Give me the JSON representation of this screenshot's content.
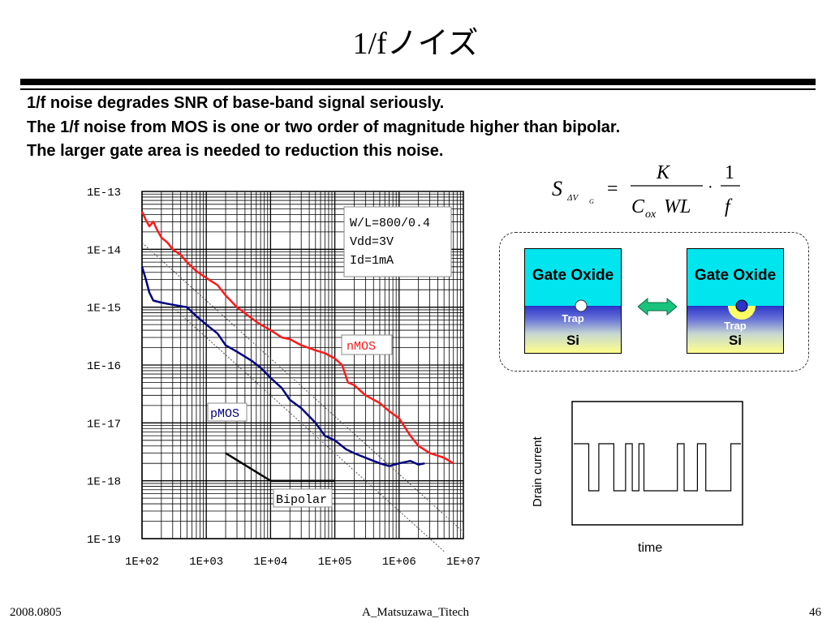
{
  "slide": {
    "title": "1/fノイズ",
    "bullets": [
      "1/f noise degrades SNR of base-band signal seriously.",
      "The  1/f noise from MOS is one or two order of magnitude higher than bipolar.",
      "The larger gate area is needed to reduction this noise."
    ],
    "formula": {
      "lhs_symbol": "S",
      "lhs_subscript": "ΔV",
      "lhs_subsubscript": "G",
      "equals": "=",
      "numerator": "K",
      "denominator": "C",
      "denominator_subscript": "ox",
      "denominator_rest": "WL",
      "dot": "·",
      "numerator2": "1",
      "denominator2": "f"
    },
    "trap_diagram": {
      "left_box": {
        "oxide_label": "Gate Oxide",
        "trap_label": "Trap",
        "si_label": "Si",
        "trap_state": "empty"
      },
      "right_box": {
        "oxide_label": "Gate Oxide",
        "trap_label": "Trap",
        "si_label": "Si",
        "trap_state": "filled"
      },
      "arrow": "double-arrow-icon",
      "colors": {
        "oxide": "#00e5ee",
        "si_top": "#2b33c8",
        "si_bottom": "#ffff8a",
        "trap_filled": "#2b33c8",
        "trap_empty": "#ffffff",
        "arrow": "#19c37d"
      }
    },
    "rts": {
      "ylabel": "Drain current",
      "xlabel": "time",
      "levels": {
        "high": 1,
        "low": 0
      },
      "transitions": [
        0.09,
        0.15,
        0.24,
        0.31,
        0.35,
        0.39,
        0.42,
        0.62,
        0.66,
        0.74,
        0.79,
        0.94
      ],
      "start_state": "high",
      "end_state": "high"
    },
    "footer": {
      "date": "2008.0805",
      "author": "A_Matsuzawa_Titech",
      "page": "46"
    }
  },
  "chart_data": {
    "type": "line",
    "title": "",
    "xlabel": "",
    "ylabel": "",
    "xscale": "log",
    "yscale": "log",
    "xlim": [
      100,
      10000000
    ],
    "ylim": [
      1e-19,
      1e-13
    ],
    "xticks": [
      "1E+02",
      "1E+03",
      "1E+04",
      "1E+05",
      "1E+06",
      "1E+07"
    ],
    "yticks": [
      "1E-13",
      "1E-14",
      "1E-15",
      "1E-16",
      "1E-17",
      "1E-18",
      "1E-19"
    ],
    "grid": true,
    "annotation": [
      "W/L=800/0.4",
      "Vdd=3V",
      "Id=1mA"
    ],
    "labels": {
      "nmos": "nMOS",
      "pmos": "pMOS",
      "bipolar": "Bipolar"
    },
    "series": [
      {
        "name": "nMOS",
        "color": "#ff1a1a",
        "points": [
          [
            100,
            4.5e-14
          ],
          [
            115,
            3.2e-14
          ],
          [
            130,
            2.5e-14
          ],
          [
            150,
            3e-14
          ],
          [
            170,
            2.2e-14
          ],
          [
            200,
            1.6e-14
          ],
          [
            250,
            1.3e-14
          ],
          [
            300,
            1e-14
          ],
          [
            400,
            8e-15
          ],
          [
            500,
            6e-15
          ],
          [
            700,
            4.2e-15
          ],
          [
            1000,
            3.2e-15
          ],
          [
            1500,
            2.4e-15
          ],
          [
            2000,
            1.6e-15
          ],
          [
            3000,
            1e-15
          ],
          [
            5000,
            6.5e-16
          ],
          [
            7000,
            5e-16
          ],
          [
            10000,
            4e-16
          ],
          [
            15000,
            3e-16
          ],
          [
            20000,
            2.8e-16
          ],
          [
            30000,
            2.2e-16
          ],
          [
            50000,
            1.8e-16
          ],
          [
            70000,
            1.6e-16
          ],
          [
            100000,
            1.3e-16
          ],
          [
            130000,
            1e-16
          ],
          [
            160000,
            5e-17
          ],
          [
            200000,
            4.5e-17
          ],
          [
            300000,
            3e-17
          ],
          [
            500000,
            2.2e-17
          ],
          [
            700000,
            1.6e-17
          ],
          [
            1000000,
            1.2e-17
          ],
          [
            1500000,
            6e-18
          ],
          [
            2000000,
            4e-18
          ],
          [
            3000000,
            3e-18
          ],
          [
            5000000,
            2.5e-18
          ],
          [
            7000000,
            2e-18
          ]
        ]
      },
      {
        "name": "pMOS",
        "color": "#000080",
        "points": [
          [
            100,
            5e-15
          ],
          [
            115,
            3e-15
          ],
          [
            130,
            1.8e-15
          ],
          [
            150,
            1.3e-15
          ],
          [
            200,
            1.2e-15
          ],
          [
            300,
            1.1e-15
          ],
          [
            500,
            1e-15
          ],
          [
            700,
            7e-16
          ],
          [
            1000,
            5e-16
          ],
          [
            1500,
            3.5e-16
          ],
          [
            2000,
            2.2e-16
          ],
          [
            3000,
            1.7e-16
          ],
          [
            5000,
            1.2e-16
          ],
          [
            7000,
            9e-17
          ],
          [
            10000,
            6e-17
          ],
          [
            15000,
            4e-17
          ],
          [
            20000,
            2.5e-17
          ],
          [
            30000,
            1.8e-17
          ],
          [
            50000,
            1e-17
          ],
          [
            70000,
            6e-18
          ],
          [
            100000,
            5e-18
          ],
          [
            150000,
            3.5e-18
          ],
          [
            200000,
            3e-18
          ],
          [
            300000,
            2.5e-18
          ],
          [
            500000,
            2e-18
          ],
          [
            700000,
            1.8e-18
          ],
          [
            1000000,
            2e-18
          ],
          [
            1500000,
            2.2e-18
          ],
          [
            2000000,
            1.9e-18
          ],
          [
            2500000,
            2e-18
          ]
        ]
      },
      {
        "name": "Bipolar",
        "color": "#000000",
        "points": [
          [
            2000,
            3e-18
          ],
          [
            10000,
            1e-18
          ],
          [
            100000,
            1e-18
          ]
        ]
      },
      {
        "name": "",
        "color": "#555555",
        "style": "dotted",
        "points": [
          [
            100,
            1.3e-14
          ],
          [
            10000000,
            1.3e-19
          ]
        ]
      },
      {
        "name": "",
        "color": "#555555",
        "style": "dotted",
        "points": [
          [
            300,
            1e-15
          ],
          [
            5000000,
            6e-20
          ]
        ]
      }
    ]
  }
}
